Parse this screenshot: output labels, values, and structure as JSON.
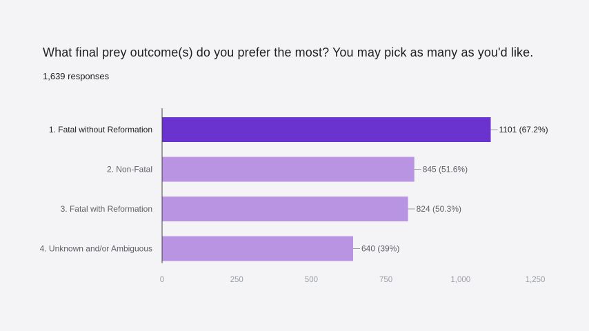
{
  "question": {
    "title": "What final prey outcome(s) do you prefer the most? You may pick as many as you'd like.",
    "responses": "1,639 responses"
  },
  "colors": {
    "primary_bar": "#6a32cf",
    "secondary_bar": "#b994e3"
  },
  "chart_data": {
    "type": "bar",
    "orientation": "horizontal",
    "title": "What final prey outcome(s) do you prefer the most? You may pick as many as you'd like.",
    "subtitle": "1,639 responses",
    "categories": [
      "1. Fatal without Reformation",
      "2. Non-Fatal",
      "3. Fatal with Reformation",
      "4. Unknown and/or Ambiguous"
    ],
    "values": [
      1101,
      845,
      824,
      640
    ],
    "value_labels": [
      "1101 (67.2%)",
      "845 (51.6%)",
      "824 (50.3%)",
      "640 (39%)"
    ],
    "xlim": [
      0,
      1250
    ],
    "xticks": [
      0,
      250,
      500,
      750,
      1000,
      1250
    ],
    "xtick_labels": [
      "0",
      "250",
      "500",
      "750",
      "1,000",
      "1,250"
    ],
    "grid": false,
    "legend": "none"
  }
}
